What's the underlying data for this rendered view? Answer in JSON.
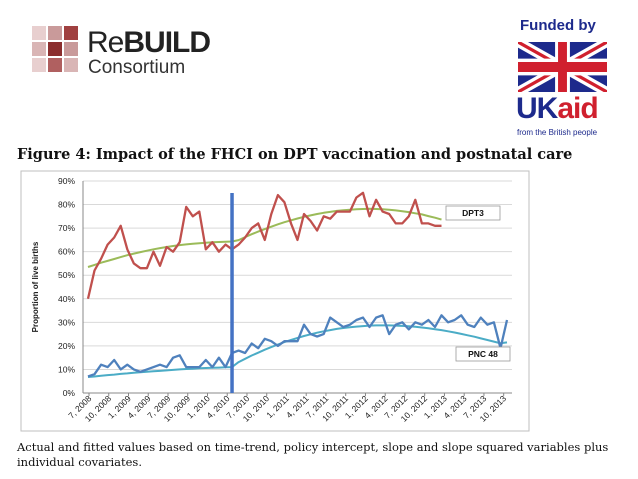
{
  "header": {
    "logo": {
      "name_bold": "BUILD",
      "name_prefix": "Re",
      "subtitle": "Consortium"
    },
    "funder": {
      "funded_by": "Funded by",
      "uk": "UK",
      "aid": "aid",
      "tagline": "from the British people"
    }
  },
  "figure": {
    "title": "Figure 4: Impact of the FHCI on DPT vaccination and postnatal care",
    "caption": "Actual and fitted values based on time-trend, policy intercept, slope and slope squared variables plus individual covariates."
  },
  "colors": {
    "dpt3": "#c0504d",
    "dpt3_fit": "#9bbb59",
    "pnc": "#4f81bd",
    "pnc_fit": "#4bacc6",
    "policy_line": "#4472c4",
    "grid": "#d9d9d9"
  },
  "chart_data": {
    "type": "line",
    "ylabel": "Proportion of live births",
    "xlabel": "",
    "ylim": [
      0,
      90
    ],
    "yticks": [
      "0%",
      "10%",
      "20%",
      "30%",
      "40%",
      "50%",
      "60%",
      "70%",
      "80%",
      "90%"
    ],
    "xtick_labels": [
      "7, 2008",
      "10, 2008",
      "1, 2009",
      "4, 2009",
      "7, 2009",
      "10, 2009",
      "1, 2010",
      "4, 2010",
      "7, 2010",
      "10, 2010",
      "1, 2011",
      "4, 2011",
      "7, 2011",
      "10, 2011",
      "1, 2012",
      "4, 2012",
      "7, 2012",
      "10, 2012",
      "1, 2013",
      "4, 2013",
      "7, 2013",
      "10, 2013"
    ],
    "policy_index": 22,
    "series": [
      {
        "name": "DPT3",
        "key": "dpt3",
        "label": "DPT3",
        "values": [
          40,
          52,
          57,
          63,
          66,
          71,
          61,
          55,
          53,
          53,
          60,
          54,
          62,
          60,
          64,
          79,
          75,
          77,
          61,
          64,
          60,
          63,
          61,
          63,
          66,
          70,
          72,
          65,
          76,
          84,
          81,
          72,
          65,
          76,
          73,
          69,
          75,
          74,
          77,
          77,
          77,
          83,
          85,
          75,
          82,
          77,
          76,
          72,
          72,
          75,
          82,
          72,
          72,
          71,
          71
        ]
      },
      {
        "name": "DPT3 fitted",
        "key": "dpt3_fit",
        "values": [
          53.5,
          54.4,
          55.3,
          56.1,
          56.9,
          57.7,
          58.5,
          59.2,
          59.8,
          60.4,
          61.0,
          61.5,
          62.0,
          62.4,
          62.8,
          63.1,
          63.4,
          63.6,
          63.8,
          64.0,
          64.1,
          64.2,
          64.3,
          64.9,
          66.2,
          67.4,
          68.5,
          69.6,
          70.6,
          71.6,
          72.5,
          73.3,
          74.1,
          74.8,
          75.4,
          76.0,
          76.5,
          76.9,
          77.3,
          77.6,
          77.8,
          78.0,
          78.1,
          78.2,
          78.1,
          78.0,
          77.8,
          77.5,
          77.2,
          76.8,
          76.3,
          75.8,
          75.1,
          74.4,
          73.6
        ]
      },
      {
        "name": "PNC 48",
        "key": "pnc",
        "label": "PNC 48",
        "values": [
          7,
          8,
          12,
          11,
          14,
          10,
          12,
          10,
          9,
          10,
          11,
          12,
          11,
          15,
          16,
          11,
          11,
          11,
          14,
          11,
          15,
          11,
          17,
          18,
          17,
          21,
          19,
          23,
          22,
          20,
          22,
          22,
          22,
          29,
          25,
          24,
          25,
          32,
          30,
          28,
          29,
          31,
          32,
          28,
          32,
          33,
          25,
          29,
          30,
          27,
          30,
          29,
          31,
          28,
          33,
          30,
          31,
          33,
          29,
          28,
          32,
          29,
          30,
          19,
          31
        ]
      },
      {
        "name": "PNC 48 fitted",
        "key": "pnc_fit",
        "values": [
          6.8,
          7.0,
          7.3,
          7.6,
          7.8,
          8.1,
          8.3,
          8.6,
          8.8,
          9.0,
          9.2,
          9.4,
          9.6,
          9.8,
          10.0,
          10.2,
          10.3,
          10.5,
          10.6,
          10.7,
          10.8,
          10.9,
          11.0,
          13.1,
          14.5,
          15.9,
          17.1,
          18.4,
          19.5,
          20.6,
          21.6,
          22.5,
          23.4,
          24.2,
          24.9,
          25.6,
          26.2,
          26.7,
          27.2,
          27.6,
          27.9,
          28.2,
          28.4,
          28.6,
          28.7,
          28.7,
          28.7,
          28.6,
          28.5,
          28.3,
          28.1,
          27.8,
          27.5,
          27.1,
          26.7,
          26.2,
          25.7,
          25.1,
          24.5,
          23.9,
          23.2,
          22.5,
          21.8,
          21.1,
          21.5
        ]
      }
    ]
  }
}
